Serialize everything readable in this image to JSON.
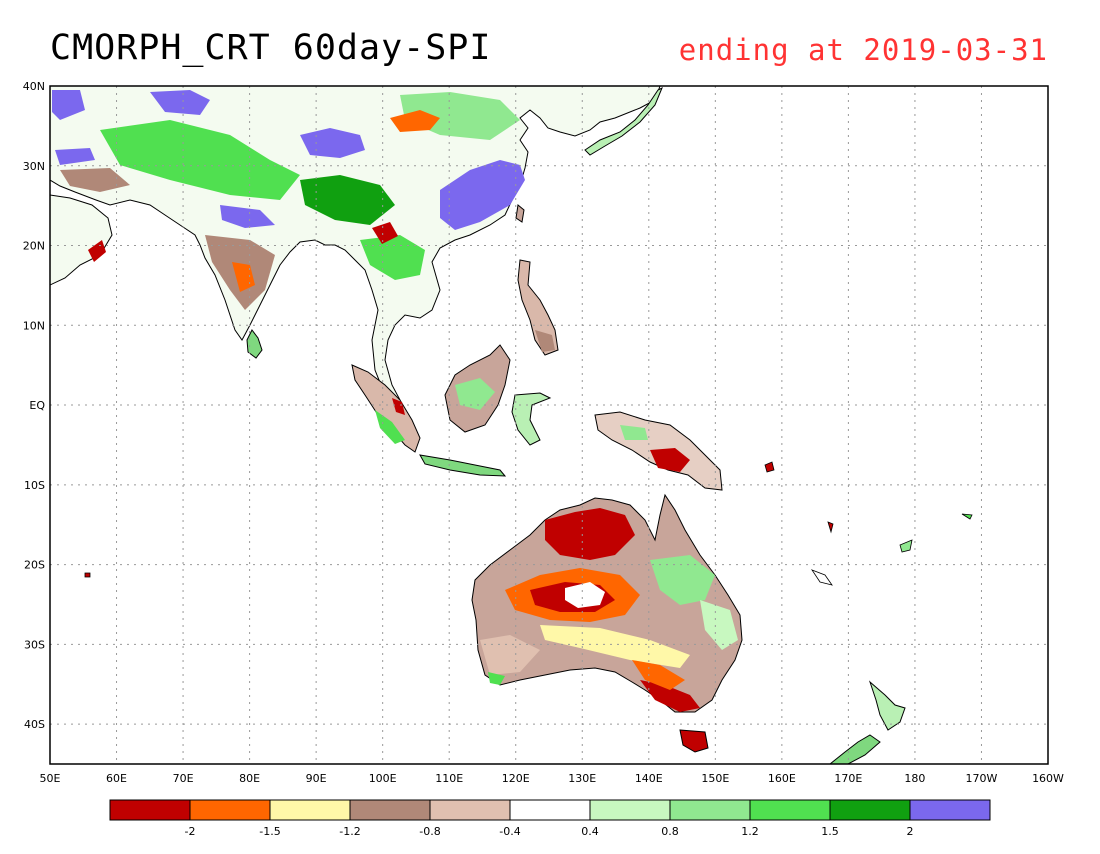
{
  "title": "CMORPH_CRT 60day-SPI",
  "subtitle": "ending at 2019-03-31",
  "map": {
    "lon_range": [
      50,
      200
    ],
    "lat_range": [
      -45,
      40
    ],
    "lat_ticks": [
      "40N",
      "30N",
      "20N",
      "10N",
      "EQ",
      "10S",
      "20S",
      "30S",
      "40S"
    ],
    "lon_ticks": [
      "50E",
      "60E",
      "70E",
      "80E",
      "90E",
      "100E",
      "110E",
      "120E",
      "130E",
      "140E",
      "150E",
      "160E",
      "170E",
      "180",
      "170W",
      "160W"
    ]
  },
  "legend": {
    "colors": [
      "#c00000",
      "#ff6600",
      "#fff8a8",
      "#b08878",
      "#e0c0b0",
      "#ffffff",
      "#c8f8c0",
      "#90e890",
      "#50e050",
      "#10a010",
      "#7b68ee"
    ],
    "labels": [
      "-2",
      "-1.5",
      "-1.2",
      "-0.8",
      "-0.4",
      "0.4",
      "0.8",
      "1.2",
      "1.5",
      "2"
    ]
  },
  "colors": {
    "coastline": "#000000",
    "grid": "#999999",
    "title": "#000000",
    "subtitle": "#ff3333"
  }
}
